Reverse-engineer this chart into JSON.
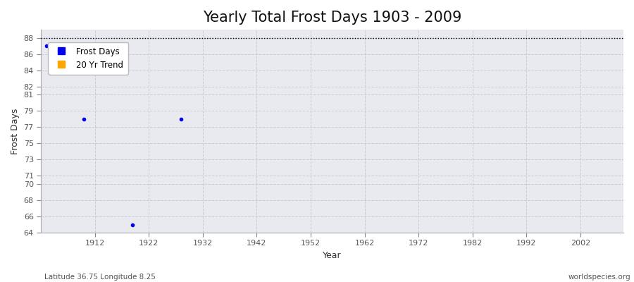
{
  "title": "Yearly Total Frost Days 1903 - 2009",
  "xlabel": "Year",
  "ylabel": "Frost Days",
  "xlim": [
    1902,
    2010
  ],
  "ylim": [
    64,
    89
  ],
  "yticks": [
    64,
    66,
    68,
    70,
    71,
    73,
    75,
    77,
    79,
    81,
    82,
    84,
    86,
    88
  ],
  "xticks": [
    1912,
    1922,
    1932,
    1942,
    1952,
    1962,
    1972,
    1982,
    1992,
    2002
  ],
  "background_color": "#e8eaf0",
  "fig_bg_color": "#ffffff",
  "dotted_line_y": 88,
  "frost_days_color": "#0000ee",
  "trend_color": "#ffa500",
  "marker_size": 3,
  "data_points": [
    {
      "year": 1903,
      "value": 87
    },
    {
      "year": 1910,
      "value": 78
    },
    {
      "year": 1919,
      "value": 65
    },
    {
      "year": 1928,
      "value": 78
    }
  ],
  "subtitle_left": "Latitude 36.75 Longitude 8.25",
  "subtitle_right": "worldspecies.org",
  "title_fontsize": 15,
  "axis_label_fontsize": 9,
  "tick_fontsize": 8,
  "legend_entries": [
    "Frost Days",
    "20 Yr Trend"
  ],
  "legend_colors": [
    "#0000ee",
    "#ffa500"
  ],
  "grid_color": "#c8ccd8",
  "grid_style": "--"
}
